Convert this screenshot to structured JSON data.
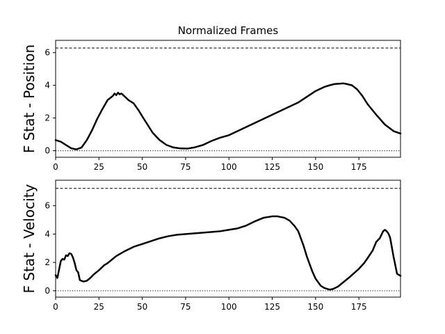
{
  "chart_data": [
    {
      "type": "line",
      "title": "Normalized Frames",
      "ylabel": "F Stat - Position",
      "xlim": [
        0,
        199
      ],
      "ylim": [
        -0.4,
        6.75
      ],
      "xticks": [
        0,
        25,
        50,
        75,
        100,
        125,
        150,
        175
      ],
      "yticks": [
        0,
        2,
        4,
        6
      ],
      "threshold": 6.28,
      "zero_line": 0,
      "series": [
        {
          "x": [
            0,
            3,
            6,
            9,
            12,
            15,
            18,
            21,
            24,
            27,
            30,
            33,
            34,
            35,
            36,
            37,
            38,
            40,
            42,
            45,
            48,
            50,
            53,
            56,
            60,
            64,
            68,
            72,
            76,
            80,
            85,
            90,
            95,
            100,
            105,
            110,
            115,
            120,
            125,
            130,
            135,
            140,
            145,
            150,
            155,
            158,
            161,
            164,
            166,
            168,
            171,
            174,
            177,
            180,
            185,
            190,
            195,
            199
          ],
          "y": [
            0.65,
            0.55,
            0.35,
            0.15,
            0.08,
            0.2,
            0.65,
            1.25,
            1.95,
            2.55,
            3.1,
            3.35,
            3.5,
            3.4,
            3.55,
            3.45,
            3.5,
            3.3,
            3.1,
            2.9,
            2.45,
            2.1,
            1.6,
            1.1,
            0.65,
            0.35,
            0.2,
            0.14,
            0.13,
            0.2,
            0.35,
            0.6,
            0.8,
            0.95,
            1.2,
            1.45,
            1.7,
            1.95,
            2.2,
            2.45,
            2.7,
            2.95,
            3.3,
            3.65,
            3.9,
            4.0,
            4.08,
            4.1,
            4.12,
            4.08,
            4.0,
            3.75,
            3.35,
            2.85,
            2.2,
            1.6,
            1.2,
            1.05
          ]
        }
      ]
    },
    {
      "type": "line",
      "ylabel": "F Stat - Velocity",
      "xlim": [
        0,
        199
      ],
      "ylim": [
        -0.45,
        7.8
      ],
      "xticks": [
        0,
        25,
        50,
        75,
        100,
        125,
        150,
        175
      ],
      "xtick_labels": [
        "0",
        "25",
        "50",
        "75",
        "100",
        "125",
        "150",
        "175"
      ],
      "yticks": [
        0,
        2,
        4,
        6
      ],
      "threshold": 7.22,
      "zero_line": 0,
      "series": [
        {
          "x": [
            0,
            1,
            2,
            3,
            4,
            5,
            6,
            7,
            8,
            9,
            10,
            11,
            12,
            13,
            14,
            16,
            18,
            20,
            22,
            25,
            28,
            30,
            35,
            40,
            45,
            50,
            55,
            60,
            65,
            70,
            75,
            80,
            85,
            90,
            95,
            100,
            105,
            110,
            115,
            120,
            125,
            128,
            130,
            132,
            135,
            138,
            140,
            143,
            145,
            148,
            150,
            153,
            155,
            158,
            160,
            163,
            165,
            170,
            175,
            178,
            180,
            183,
            185,
            187,
            188,
            189,
            190,
            191,
            192,
            193,
            195,
            197,
            199
          ],
          "y": [
            1.1,
            0.9,
            1.5,
            2.1,
            2.25,
            2.2,
            2.5,
            2.45,
            2.65,
            2.6,
            2.35,
            1.95,
            1.45,
            1.3,
            0.75,
            0.65,
            0.7,
            0.9,
            1.15,
            1.45,
            1.8,
            1.95,
            2.45,
            2.8,
            3.1,
            3.3,
            3.5,
            3.7,
            3.85,
            3.95,
            4.0,
            4.05,
            4.1,
            4.15,
            4.2,
            4.3,
            4.4,
            4.6,
            4.9,
            5.15,
            5.25,
            5.25,
            5.2,
            5.15,
            4.95,
            4.55,
            4.2,
            3.2,
            2.4,
            1.4,
            0.85,
            0.35,
            0.2,
            0.08,
            0.12,
            0.3,
            0.5,
            1.0,
            1.55,
            1.95,
            2.3,
            2.85,
            3.45,
            3.7,
            3.95,
            4.2,
            4.3,
            4.2,
            4.05,
            3.75,
            2.4,
            1.2,
            1.05
          ]
        }
      ]
    }
  ]
}
